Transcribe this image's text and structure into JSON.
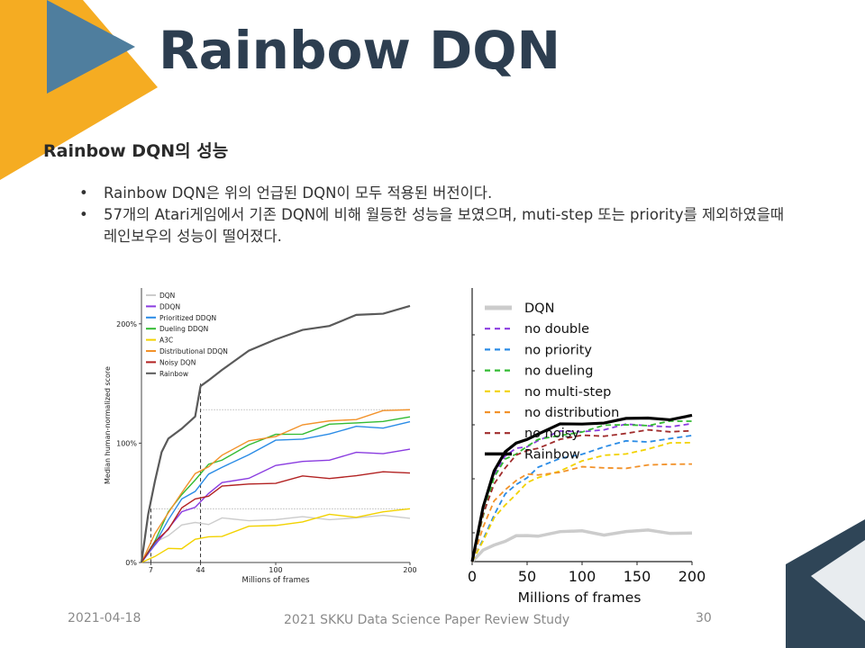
{
  "slide": {
    "title": "Rainbow DQN",
    "subtitle": "Rainbow DQN의 성능",
    "bullets": [
      "Rainbow DQN은 위의 언급된 DQN이 모두 적용된 버전이다.",
      "57개의 Atari게임에서 기존 DQN에 비해 월등한 성능을 보였으며, muti-step 또는 priority를 제외하였을때 레인보우의 성능이 떨어졌다."
    ],
    "colors": {
      "title": "#2d3e50",
      "accent_orange": "#f5ac22",
      "accent_navy": "#2f4557",
      "accent_blue": "#4f7e9e"
    }
  },
  "footer": {
    "date": "2021-04-18",
    "center": "2021 SKKU Data Science Paper Review Study",
    "page": "30"
  },
  "chart_data": [
    {
      "type": "line",
      "title": "",
      "xlabel": "Millions of frames",
      "ylabel": "Median human-normalized score",
      "xlim": [
        0,
        200
      ],
      "ylim": [
        0,
        230
      ],
      "xticks": [
        7,
        44,
        100,
        200
      ],
      "yticks": [
        "0%",
        "100%",
        "200%"
      ],
      "legend_position": "top-left",
      "series": [
        {
          "name": "DQN",
          "color": "#cccccc",
          "x": [
            0,
            10,
            20,
            30,
            40,
            50,
            60,
            80,
            100,
            120,
            140,
            160,
            180,
            200
          ],
          "y": [
            0,
            15,
            25,
            30,
            33,
            34,
            35,
            36,
            37,
            36,
            38,
            37,
            38,
            37
          ]
        },
        {
          "name": "DDQN",
          "color": "#8a3ce0",
          "x": [
            0,
            10,
            20,
            30,
            40,
            50,
            60,
            80,
            100,
            120,
            140,
            160,
            180,
            200
          ],
          "y": [
            0,
            15,
            30,
            40,
            48,
            58,
            65,
            73,
            80,
            84,
            88,
            90,
            92,
            95
          ]
        },
        {
          "name": "Prioritized DDQN",
          "color": "#2b8ce6",
          "x": [
            0,
            10,
            20,
            30,
            40,
            50,
            60,
            80,
            100,
            120,
            140,
            160,
            180,
            200
          ],
          "y": [
            0,
            18,
            35,
            52,
            62,
            72,
            80,
            92,
            100,
            105,
            108,
            112,
            115,
            118
          ]
        },
        {
          "name": "Dueling DDQN",
          "color": "#33bb33",
          "x": [
            0,
            10,
            20,
            30,
            40,
            50,
            60,
            80,
            100,
            120,
            140,
            160,
            180,
            200
          ],
          "y": [
            0,
            20,
            40,
            58,
            70,
            80,
            88,
            98,
            106,
            110,
            114,
            117,
            120,
            122
          ]
        },
        {
          "name": "A3C",
          "color": "#f2d200",
          "x": [
            0,
            10,
            20,
            30,
            40,
            50,
            60,
            80,
            100,
            120,
            140,
            160,
            180,
            200
          ],
          "y": [
            0,
            5,
            10,
            14,
            18,
            21,
            24,
            28,
            32,
            35,
            38,
            40,
            42,
            45
          ]
        },
        {
          "name": "Distributional DDQN",
          "color": "#f2922a",
          "x": [
            0,
            10,
            20,
            30,
            40,
            50,
            60,
            80,
            100,
            120,
            140,
            160,
            180,
            200
          ],
          "y": [
            0,
            22,
            42,
            60,
            72,
            82,
            90,
            100,
            108,
            114,
            118,
            122,
            125,
            128
          ]
        },
        {
          "name": "Noisy DQN",
          "color": "#b22222",
          "x": [
            0,
            10,
            20,
            30,
            40,
            50,
            60,
            80,
            100,
            120,
            140,
            160,
            180,
            200
          ],
          "y": [
            0,
            15,
            30,
            45,
            52,
            58,
            62,
            66,
            68,
            70,
            72,
            73,
            74,
            75
          ]
        },
        {
          "name": "Rainbow",
          "color": "#5a5a5a",
          "x": [
            0,
            5,
            10,
            15,
            20,
            30,
            40,
            44,
            50,
            60,
            80,
            100,
            120,
            140,
            160,
            180,
            200
          ],
          "y": [
            0,
            40,
            70,
            90,
            105,
            113,
            120,
            150,
            152,
            160,
            180,
            185,
            195,
            200,
            205,
            210,
            215
          ]
        }
      ]
    },
    {
      "type": "line",
      "title": "",
      "xlabel": "Millions of frames",
      "ylabel": "",
      "xlim": [
        0,
        200
      ],
      "ylim": [
        0,
        230
      ],
      "xticks": [
        "0",
        "50",
        "100",
        "150",
        "200"
      ],
      "legend_position": "top-left",
      "series": [
        {
          "name": "DQN",
          "color": "#cccccc",
          "x": [
            0,
            10,
            20,
            30,
            40,
            50,
            60,
            80,
            100,
            120,
            140,
            160,
            180,
            200
          ],
          "y": [
            0,
            8,
            15,
            18,
            20,
            22,
            23,
            24,
            25,
            24,
            25,
            25,
            25,
            24
          ]
        },
        {
          "name": "no double",
          "color": "#8a3ce0",
          "x": [
            0,
            10,
            20,
            30,
            40,
            50,
            60,
            80,
            100,
            120,
            140,
            160,
            180,
            200
          ],
          "y": [
            0,
            45,
            75,
            88,
            94,
            98,
            102,
            108,
            110,
            112,
            114,
            114,
            115,
            116
          ]
        },
        {
          "name": "no priority",
          "color": "#2b8ce6",
          "x": [
            0,
            10,
            20,
            30,
            40,
            50,
            60,
            80,
            100,
            120,
            140,
            160,
            180,
            200
          ],
          "y": [
            0,
            20,
            40,
            55,
            65,
            72,
            78,
            86,
            92,
            96,
            100,
            102,
            104,
            106
          ]
        },
        {
          "name": "no dueling",
          "color": "#33bb33",
          "x": [
            0,
            10,
            20,
            30,
            40,
            50,
            60,
            80,
            100,
            120,
            140,
            160,
            180,
            200
          ],
          "y": [
            0,
            40,
            70,
            85,
            92,
            97,
            101,
            107,
            110,
            113,
            115,
            116,
            117,
            118
          ]
        },
        {
          "name": "no multi-step",
          "color": "#f2d200",
          "x": [
            0,
            10,
            20,
            30,
            40,
            50,
            60,
            80,
            100,
            120,
            140,
            160,
            180,
            200
          ],
          "y": [
            0,
            18,
            35,
            48,
            58,
            65,
            70,
            78,
            84,
            88,
            92,
            95,
            98,
            100
          ]
        },
        {
          "name": "no distribution",
          "color": "#f2922a",
          "x": [
            0,
            10,
            20,
            30,
            40,
            50,
            60,
            80,
            100,
            120,
            140,
            160,
            180,
            200
          ],
          "y": [
            0,
            28,
            50,
            62,
            68,
            72,
            74,
            76,
            78,
            79,
            80,
            80,
            81,
            82
          ]
        },
        {
          "name": "no noisy",
          "color": "#a02c2c",
          "x": [
            0,
            10,
            20,
            30,
            40,
            50,
            60,
            80,
            100,
            120,
            140,
            160,
            180,
            200
          ],
          "y": [
            0,
            38,
            66,
            80,
            88,
            93,
            97,
            102,
            105,
            107,
            108,
            109,
            110,
            110
          ]
        },
        {
          "name": "Rainbow",
          "color": "#000000",
          "x": [
            0,
            10,
            20,
            30,
            40,
            50,
            60,
            80,
            100,
            120,
            140,
            160,
            180,
            200
          ],
          "y": [
            0,
            45,
            78,
            92,
            98,
            104,
            108,
            114,
            116,
            118,
            119,
            120,
            121,
            123
          ]
        }
      ]
    }
  ]
}
